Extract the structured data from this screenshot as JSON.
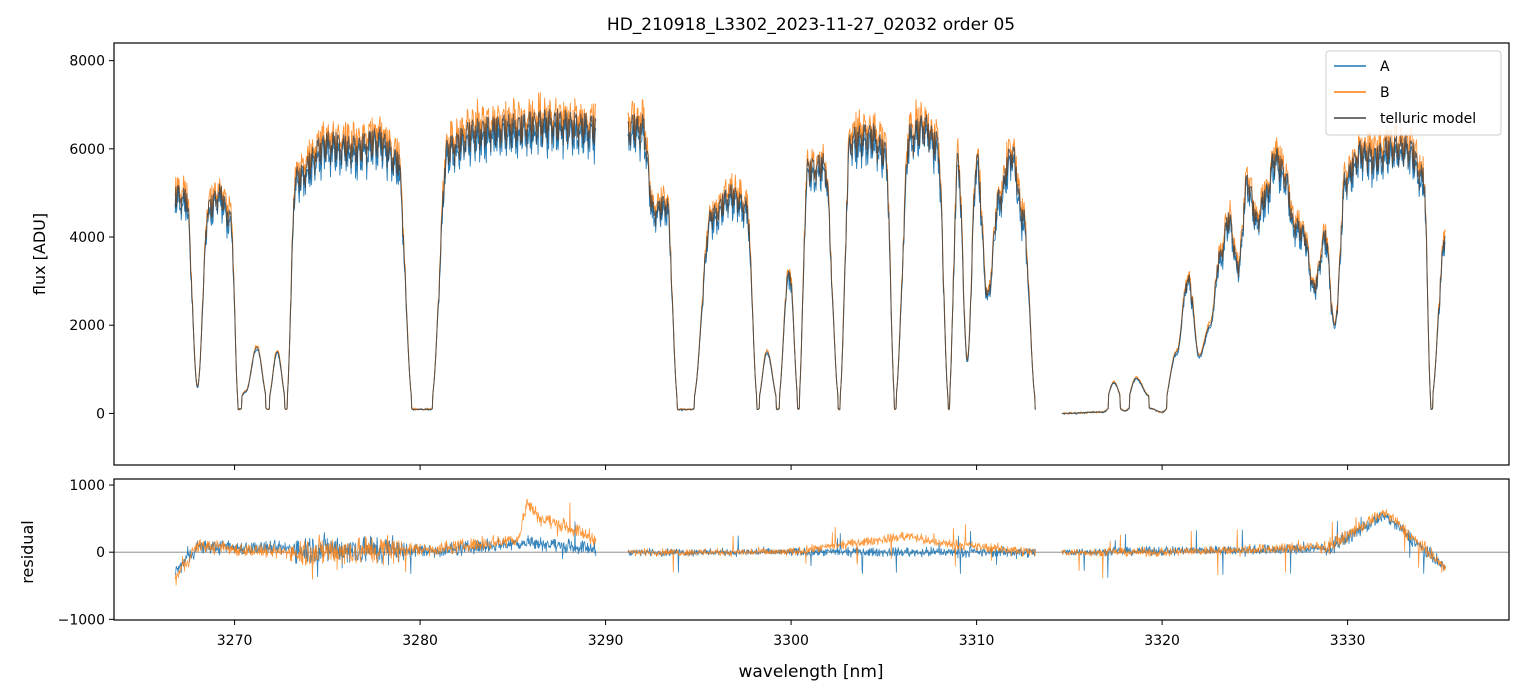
{
  "figure": {
    "title": "HD_210918_L3302_2023-11-27_02032  order 05"
  },
  "chart_data": [
    {
      "panel": "flux",
      "type": "line",
      "ylabel": "flux [ADU]",
      "xlabel": "",
      "xlim": [
        3263.5,
        3338.7
      ],
      "ylim": [
        -1170,
        8400
      ],
      "xticks": [
        3270,
        3280,
        3290,
        3300,
        3310,
        3320,
        3330
      ],
      "yticks": [
        0,
        2000,
        4000,
        6000,
        8000
      ],
      "grid": false,
      "legend": "top-right",
      "legend_entries": [
        "A",
        "B",
        "telluric model"
      ],
      "colors": {
        "A": "#1f77b4",
        "B": "#ff7f0e",
        "model": "#404040"
      },
      "segments": [
        [
          3266.8,
          3289.5
        ],
        [
          3291.2,
          3313.2
        ],
        [
          3314.6,
          3335.3
        ]
      ],
      "plateaus": [
        [
          3266.8,
          5200
        ],
        [
          3267.4,
          5100
        ],
        [
          3268.0,
          600
        ],
        [
          3268.6,
          4900
        ],
        [
          3269.2,
          5200
        ],
        [
          3269.8,
          4600
        ],
        [
          3270.2,
          300
        ],
        [
          3270.6,
          500
        ],
        [
          3271.2,
          1500
        ],
        [
          3271.8,
          300
        ],
        [
          3272.3,
          1400
        ],
        [
          3272.8,
          300
        ],
        [
          3273.3,
          5600
        ],
        [
          3275.0,
          6400
        ],
        [
          3276.5,
          6300
        ],
        [
          3277.8,
          6500
        ],
        [
          3278.8,
          6000
        ],
        [
          3279.6,
          300
        ],
        [
          3280.6,
          300
        ],
        [
          3281.5,
          6300
        ],
        [
          3283.0,
          6700
        ],
        [
          3285.0,
          6800
        ],
        [
          3287.0,
          6900
        ],
        [
          3289.4,
          6800
        ],
        [
          3291.3,
          6800
        ],
        [
          3292.0,
          6800
        ],
        [
          3292.6,
          4800
        ],
        [
          3293.3,
          5000
        ],
        [
          3293.9,
          300
        ],
        [
          3294.7,
          300
        ],
        [
          3295.7,
          4700
        ],
        [
          3296.8,
          5200
        ],
        [
          3297.6,
          4900
        ],
        [
          3298.2,
          300
        ],
        [
          3298.7,
          1400
        ],
        [
          3299.3,
          300
        ],
        [
          3299.9,
          3400
        ],
        [
          3300.4,
          300
        ],
        [
          3300.9,
          5800
        ],
        [
          3301.8,
          5900
        ],
        [
          3302.6,
          300
        ],
        [
          3303.2,
          6500
        ],
        [
          3304.3,
          6600
        ],
        [
          3305.1,
          6200
        ],
        [
          3305.6,
          300
        ],
        [
          3306.4,
          6600
        ],
        [
          3307.2,
          6800
        ],
        [
          3307.9,
          6400
        ],
        [
          3308.5,
          300
        ],
        [
          3309.0,
          6000
        ],
        [
          3309.5,
          1200
        ],
        [
          3310.0,
          6000
        ],
        [
          3310.6,
          2800
        ],
        [
          3311.2,
          5100
        ],
        [
          3311.9,
          6200
        ],
        [
          3312.5,
          4700
        ],
        [
          3313.2,
          300
        ],
        [
          3314.6,
          0
        ],
        [
          3316.8,
          100
        ],
        [
          3317.4,
          700
        ],
        [
          3318.0,
          200
        ],
        [
          3318.6,
          800
        ],
        [
          3319.3,
          400
        ],
        [
          3320.0,
          100
        ],
        [
          3320.8,
          1400
        ],
        [
          3321.4,
          3200
        ],
        [
          3322.0,
          1300
        ],
        [
          3322.6,
          2000
        ],
        [
          3323.1,
          3700
        ],
        [
          3323.6,
          4600
        ],
        [
          3324.1,
          3500
        ],
        [
          3324.6,
          5500
        ],
        [
          3325.1,
          4600
        ],
        [
          3325.6,
          5200
        ],
        [
          3326.1,
          6100
        ],
        [
          3326.6,
          5700
        ],
        [
          3327.1,
          4500
        ],
        [
          3327.6,
          4300
        ],
        [
          3328.2,
          3000
        ],
        [
          3328.8,
          4200
        ],
        [
          3329.3,
          2000
        ],
        [
          3329.9,
          5600
        ],
        [
          3330.7,
          6200
        ],
        [
          3331.5,
          6100
        ],
        [
          3332.3,
          6300
        ],
        [
          3333.3,
          6300
        ],
        [
          3334.1,
          5600
        ],
        [
          3334.5,
          300
        ],
        [
          3335.3,
          4300
        ]
      ]
    },
    {
      "panel": "residual",
      "type": "line",
      "ylabel": "residual",
      "xlabel": "wavelength [nm]",
      "xlim": [
        3263.5,
        3338.7
      ],
      "ylim": [
        -1010,
        1090
      ],
      "xticks": [
        3270,
        3280,
        3290,
        3300,
        3310,
        3320,
        3330
      ],
      "xticklabels": [
        "3270",
        "3280",
        "3290",
        "3300",
        "3310",
        "3320",
        "3330"
      ],
      "yticks": [
        -1000,
        0,
        1000
      ],
      "yticklabels": [
        "−1000",
        "0",
        "1000"
      ],
      "zero_line": true,
      "grid": false,
      "colors": {
        "A": "#1f77b4",
        "B": "#ff7f0e",
        "zero": "#808080"
      },
      "segments": [
        [
          3266.8,
          3289.5
        ],
        [
          3291.2,
          3313.2
        ],
        [
          3314.6,
          3335.3
        ]
      ],
      "bias_B": [
        [
          3266.8,
          -400
        ],
        [
          3268.0,
          100
        ],
        [
          3272.0,
          0
        ],
        [
          3281.0,
          50
        ],
        [
          3284.0,
          150
        ],
        [
          3285.3,
          200
        ],
        [
          3285.8,
          750
        ],
        [
          3286.5,
          500
        ],
        [
          3287.5,
          420
        ],
        [
          3289.5,
          200
        ],
        [
          3291.2,
          0
        ],
        [
          3300.0,
          0
        ],
        [
          3306.5,
          250
        ],
        [
          3307.5,
          150
        ],
        [
          3313.2,
          0
        ],
        [
          3314.6,
          0
        ],
        [
          3320.0,
          0
        ],
        [
          3329.0,
          80
        ],
        [
          3332.0,
          600
        ],
        [
          3335.3,
          -250
        ]
      ],
      "bias_A": [
        [
          3266.8,
          -300
        ],
        [
          3268.0,
          80
        ],
        [
          3281.0,
          20
        ],
        [
          3284.5,
          120
        ],
        [
          3286.0,
          150
        ],
        [
          3287.5,
          100
        ],
        [
          3289.5,
          50
        ],
        [
          3291.2,
          0
        ],
        [
          3313.2,
          0
        ],
        [
          3314.6,
          0
        ],
        [
          3329.0,
          50
        ],
        [
          3332.0,
          550
        ],
        [
          3335.3,
          -250
        ]
      ],
      "noise_level": [
        [
          3266.8,
          80
        ],
        [
          3273.0,
          80
        ],
        [
          3273.5,
          180
        ],
        [
          3278.5,
          180
        ],
        [
          3279.5,
          80
        ],
        [
          3289.5,
          80
        ],
        [
          3291.2,
          40
        ],
        [
          3313.2,
          60
        ],
        [
          3314.6,
          40
        ],
        [
          3335.3,
          80
        ]
      ]
    }
  ]
}
